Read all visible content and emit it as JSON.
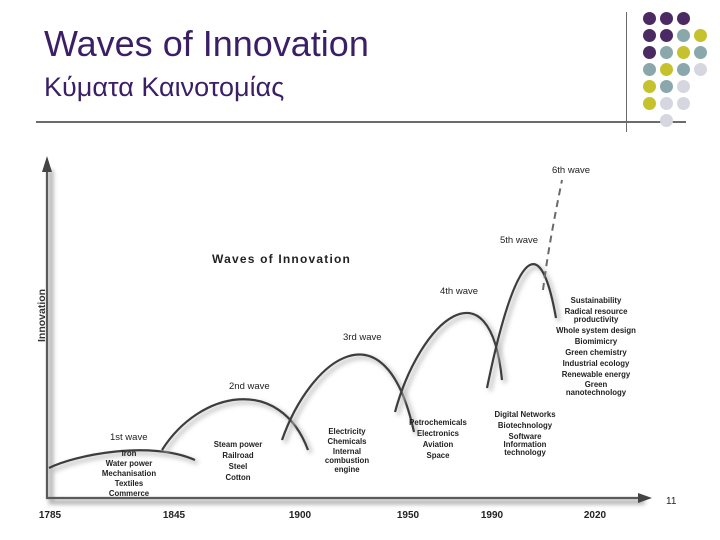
{
  "slide": {
    "title": "Waves of Innovation",
    "subtitle": "Κύματα Καινοτομίας",
    "page_number": "11"
  },
  "decoration": {
    "dot_colors": {
      "purple": "#4b2a63",
      "teal": "#8aa8ac",
      "olive": "#c5c22d",
      "grey": "#d6d6e0"
    }
  },
  "figure": {
    "heading": "Waves of Innovation",
    "y_axis_label": "Innovation",
    "x_ticks": [
      "1785",
      "1845",
      "1900",
      "1950",
      "1990",
      "2020"
    ],
    "waves": [
      {
        "label": "1st wave",
        "items": [
          "Iron",
          "Water power",
          "Mechanisation",
          "Textiles",
          "Commerce"
        ]
      },
      {
        "label": "2nd wave",
        "items": [
          "Steam power",
          "Railroad",
          "Steel",
          "Cotton"
        ]
      },
      {
        "label": "3rd wave",
        "items": [
          "Electricity",
          "Chemicals",
          "Internal",
          "combustion",
          "engine"
        ]
      },
      {
        "label": "4th wave",
        "items": [
          "Petrochemicals",
          "Electronics",
          "Aviation",
          "Space"
        ]
      },
      {
        "label": "5th wave",
        "items": [
          "Digital Networks",
          "Biotechnology",
          "Software",
          "Information",
          "technology"
        ]
      },
      {
        "label": "6th wave",
        "items": [
          "Sustainability",
          "Radical resource",
          "productivity",
          "Whole system design",
          "Biomimicry",
          "Green chemistry",
          "Industrial ecology",
          "Renewable energy",
          "Green",
          "nanotechnology"
        ]
      }
    ]
  }
}
